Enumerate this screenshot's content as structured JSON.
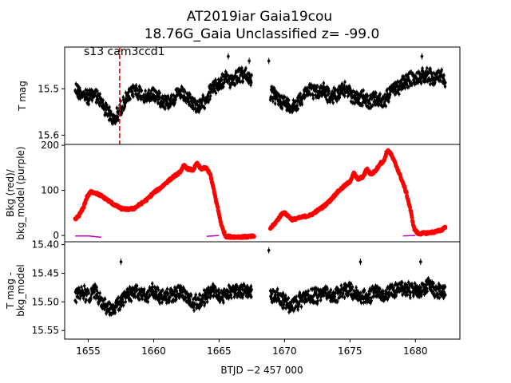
{
  "title_line1": "AT2019iar  Gaia19cou",
  "title_line2": "18.76G_Gaia Unclassified z= -99.0",
  "x_axis_label": "BTJD −2 457 000",
  "x_ticks": [
    1655,
    1660,
    1665,
    1670,
    1675,
    1680
  ],
  "colors": {
    "data_points": "#000000",
    "background": "#ff0000",
    "bkg_model": "#bf00bf",
    "marker_line": "#ff0000"
  },
  "chart_data": [
    {
      "panel": "top",
      "type": "scatter",
      "annotation": "s13 cam3ccd1",
      "ylabel": "T mag",
      "y_inverted": true,
      "ylim": [
        15.62,
        15.41
      ],
      "xlim": [
        1653.2,
        1683.4
      ],
      "y_ticks": [
        "15.5",
        "15.6"
      ],
      "y_tick_values": [
        15.5,
        15.6
      ],
      "vertical_marker_x": 1657.4,
      "series": [
        {
          "points": [
            [
              1654.0,
              15.5
            ],
            [
              1654.5,
              15.51
            ],
            [
              1655.0,
              15.52
            ],
            [
              1655.5,
              15.51
            ],
            [
              1656.0,
              15.53
            ],
            [
              1656.5,
              15.55
            ],
            [
              1657.0,
              15.57
            ],
            [
              1657.5,
              15.54
            ],
            [
              1658.0,
              15.52
            ],
            [
              1658.5,
              15.5
            ],
            [
              1659.0,
              15.51
            ],
            [
              1659.5,
              15.52
            ],
            [
              1660.0,
              15.51
            ],
            [
              1660.5,
              15.52
            ],
            [
              1661.0,
              15.53
            ],
            [
              1661.5,
              15.52
            ],
            [
              1662.0,
              15.51
            ],
            [
              1662.5,
              15.52
            ],
            [
              1663.0,
              15.53
            ],
            [
              1663.5,
              15.54
            ],
            [
              1664.0,
              15.52
            ],
            [
              1664.5,
              15.5
            ],
            [
              1665.0,
              15.49
            ],
            [
              1665.5,
              15.48
            ],
            [
              1666.0,
              15.48
            ],
            [
              1666.5,
              15.47
            ],
            [
              1667.0,
              15.47
            ],
            [
              1667.5,
              15.48
            ],
            [
              1668.9,
              15.51
            ],
            [
              1669.5,
              15.52
            ],
            [
              1670.0,
              15.53
            ],
            [
              1670.5,
              15.54
            ],
            [
              1671.0,
              15.53
            ],
            [
              1671.5,
              15.51
            ],
            [
              1672.0,
              15.5
            ],
            [
              1672.5,
              15.51
            ],
            [
              1673.0,
              15.5
            ],
            [
              1673.5,
              15.52
            ],
            [
              1674.0,
              15.51
            ],
            [
              1674.5,
              15.5
            ],
            [
              1675.0,
              15.51
            ],
            [
              1675.5,
              15.52
            ],
            [
              1676.0,
              15.52
            ],
            [
              1676.5,
              15.53
            ],
            [
              1677.0,
              15.52
            ],
            [
              1677.5,
              15.53
            ],
            [
              1678.0,
              15.51
            ],
            [
              1678.5,
              15.5
            ],
            [
              1679.0,
              15.49
            ],
            [
              1679.5,
              15.48
            ],
            [
              1680.0,
              15.48
            ],
            [
              1680.5,
              15.47
            ],
            [
              1681.0,
              15.47
            ],
            [
              1681.5,
              15.48
            ],
            [
              1682.0,
              15.47
            ],
            [
              1682.3,
              15.48
            ]
          ],
          "outliers": [
            [
              1665.7,
              15.43
            ],
            [
              1667.3,
              15.44
            ],
            [
              1668.8,
              15.44
            ],
            [
              1680.5,
              15.43
            ]
          ]
        }
      ]
    },
    {
      "panel": "middle",
      "type": "scatter",
      "ylabel": "Bkg (red)/\nbkg_model (purple)",
      "ylim": [
        -14,
        202
      ],
      "xlim": [
        1653.2,
        1683.4
      ],
      "y_ticks": [
        "0",
        "100",
        "200"
      ],
      "y_tick_values": [
        0,
        100,
        200
      ],
      "series": [
        {
          "name": "Bkg",
          "points": [
            [
              1654.0,
              35
            ],
            [
              1654.3,
              45
            ],
            [
              1654.6,
              60
            ],
            [
              1654.9,
              85
            ],
            [
              1655.2,
              97
            ],
            [
              1655.5,
              95
            ],
            [
              1656.0,
              88
            ],
            [
              1656.5,
              78
            ],
            [
              1657.0,
              68
            ],
            [
              1657.5,
              60
            ],
            [
              1658.0,
              58
            ],
            [
              1658.5,
              60
            ],
            [
              1659.0,
              70
            ],
            [
              1659.5,
              80
            ],
            [
              1660.0,
              95
            ],
            [
              1660.5,
              105
            ],
            [
              1661.0,
              118
            ],
            [
              1661.5,
              130
            ],
            [
              1662.0,
              140
            ],
            [
              1662.3,
              155
            ],
            [
              1662.6,
              148
            ],
            [
              1663.0,
              145
            ],
            [
              1663.3,
              160
            ],
            [
              1663.6,
              148
            ],
            [
              1664.0,
              150
            ],
            [
              1664.3,
              138
            ],
            [
              1664.6,
              100
            ],
            [
              1664.9,
              60
            ],
            [
              1665.2,
              20
            ],
            [
              1665.5,
              -2
            ],
            [
              1666.0,
              -3
            ],
            [
              1667.0,
              -3
            ],
            [
              1667.7,
              -2
            ],
            [
              1668.9,
              15
            ],
            [
              1669.3,
              28
            ],
            [
              1669.6,
              40
            ],
            [
              1669.9,
              52
            ],
            [
              1670.2,
              45
            ],
            [
              1670.6,
              35
            ],
            [
              1671.0,
              38
            ],
            [
              1671.5,
              42
            ],
            [
              1672.0,
              45
            ],
            [
              1672.5,
              55
            ],
            [
              1673.0,
              65
            ],
            [
              1673.5,
              78
            ],
            [
              1674.0,
              95
            ],
            [
              1674.5,
              108
            ],
            [
              1675.0,
              120
            ],
            [
              1675.3,
              138
            ],
            [
              1675.6,
              125
            ],
            [
              1676.0,
              130
            ],
            [
              1676.3,
              148
            ],
            [
              1676.6,
              135
            ],
            [
              1677.0,
              145
            ],
            [
              1677.3,
              160
            ],
            [
              1677.6,
              165
            ],
            [
              1677.8,
              185
            ],
            [
              1678.0,
              188
            ],
            [
              1678.3,
              170
            ],
            [
              1678.6,
              150
            ],
            [
              1679.0,
              120
            ],
            [
              1679.3,
              95
            ],
            [
              1679.6,
              60
            ],
            [
              1679.9,
              15
            ],
            [
              1680.2,
              4
            ],
            [
              1680.6,
              5
            ],
            [
              1681.0,
              6
            ],
            [
              1681.5,
              8
            ],
            [
              1682.0,
              12
            ],
            [
              1682.3,
              20
            ]
          ]
        },
        {
          "name": "bkg_model",
          "points": [
            [
              1654.0,
              -1
            ],
            [
              1655.0,
              -1
            ],
            [
              1656.0,
              -4
            ],
            [
              1658.0,
              -4
            ],
            [
              1660.0,
              -3
            ],
            [
              1662.0,
              -3
            ],
            [
              1664.0,
              -2
            ],
            [
              1665.0,
              0
            ],
            [
              1667.7,
              0
            ],
            [
              1668.9,
              -2
            ],
            [
              1671.0,
              -2
            ],
            [
              1674.0,
              -2
            ],
            [
              1677.0,
              -2
            ],
            [
              1679.0,
              -1
            ],
            [
              1680.0,
              0
            ],
            [
              1682.3,
              0
            ]
          ]
        }
      ]
    },
    {
      "panel": "bottom",
      "type": "scatter",
      "ylabel": "T mag -\nbkg_model",
      "y_inverted": true,
      "ylim": [
        15.565,
        15.395
      ],
      "xlim": [
        1653.2,
        1683.4
      ],
      "y_ticks": [
        "15.40",
        "15.45",
        "15.50",
        "15.55"
      ],
      "y_tick_values": [
        15.4,
        15.45,
        15.5,
        15.55
      ],
      "series": [
        {
          "points": [
            [
              1654.0,
              15.49
            ],
            [
              1654.5,
              15.48
            ],
            [
              1655.0,
              15.49
            ],
            [
              1655.5,
              15.48
            ],
            [
              1656.0,
              15.5
            ],
            [
              1656.5,
              15.51
            ],
            [
              1657.0,
              15.51
            ],
            [
              1657.5,
              15.5
            ],
            [
              1658.0,
              15.49
            ],
            [
              1658.5,
              15.48
            ],
            [
              1659.0,
              15.49
            ],
            [
              1659.5,
              15.49
            ],
            [
              1660.0,
              15.48
            ],
            [
              1660.5,
              15.49
            ],
            [
              1661.0,
              15.49
            ],
            [
              1661.5,
              15.49
            ],
            [
              1662.0,
              15.48
            ],
            [
              1662.5,
              15.49
            ],
            [
              1663.0,
              15.5
            ],
            [
              1663.5,
              15.5
            ],
            [
              1664.0,
              15.49
            ],
            [
              1664.5,
              15.48
            ],
            [
              1665.0,
              15.49
            ],
            [
              1665.5,
              15.49
            ],
            [
              1666.0,
              15.48
            ],
            [
              1666.5,
              15.48
            ],
            [
              1667.0,
              15.48
            ],
            [
              1667.5,
              15.48
            ],
            [
              1668.9,
              15.49
            ],
            [
              1669.5,
              15.49
            ],
            [
              1670.0,
              15.5
            ],
            [
              1670.5,
              15.51
            ],
            [
              1671.0,
              15.5
            ],
            [
              1671.5,
              15.49
            ],
            [
              1672.0,
              15.49
            ],
            [
              1672.5,
              15.49
            ],
            [
              1673.0,
              15.48
            ],
            [
              1673.5,
              15.49
            ],
            [
              1674.0,
              15.49
            ],
            [
              1674.5,
              15.48
            ],
            [
              1675.0,
              15.48
            ],
            [
              1675.5,
              15.49
            ],
            [
              1676.0,
              15.49
            ],
            [
              1676.5,
              15.49
            ],
            [
              1677.0,
              15.48
            ],
            [
              1677.5,
              15.49
            ],
            [
              1678.0,
              15.48
            ],
            [
              1678.5,
              15.48
            ],
            [
              1679.0,
              15.48
            ],
            [
              1679.5,
              15.48
            ],
            [
              1680.0,
              15.48
            ],
            [
              1680.5,
              15.48
            ],
            [
              1681.0,
              15.47
            ],
            [
              1681.5,
              15.48
            ],
            [
              1682.0,
              15.48
            ],
            [
              1682.3,
              15.48
            ]
          ],
          "outliers": [
            [
              1668.8,
              15.41
            ],
            [
              1680.4,
              15.43
            ],
            [
              1657.5,
              15.43
            ],
            [
              1675.8,
              15.43
            ]
          ]
        }
      ]
    }
  ]
}
